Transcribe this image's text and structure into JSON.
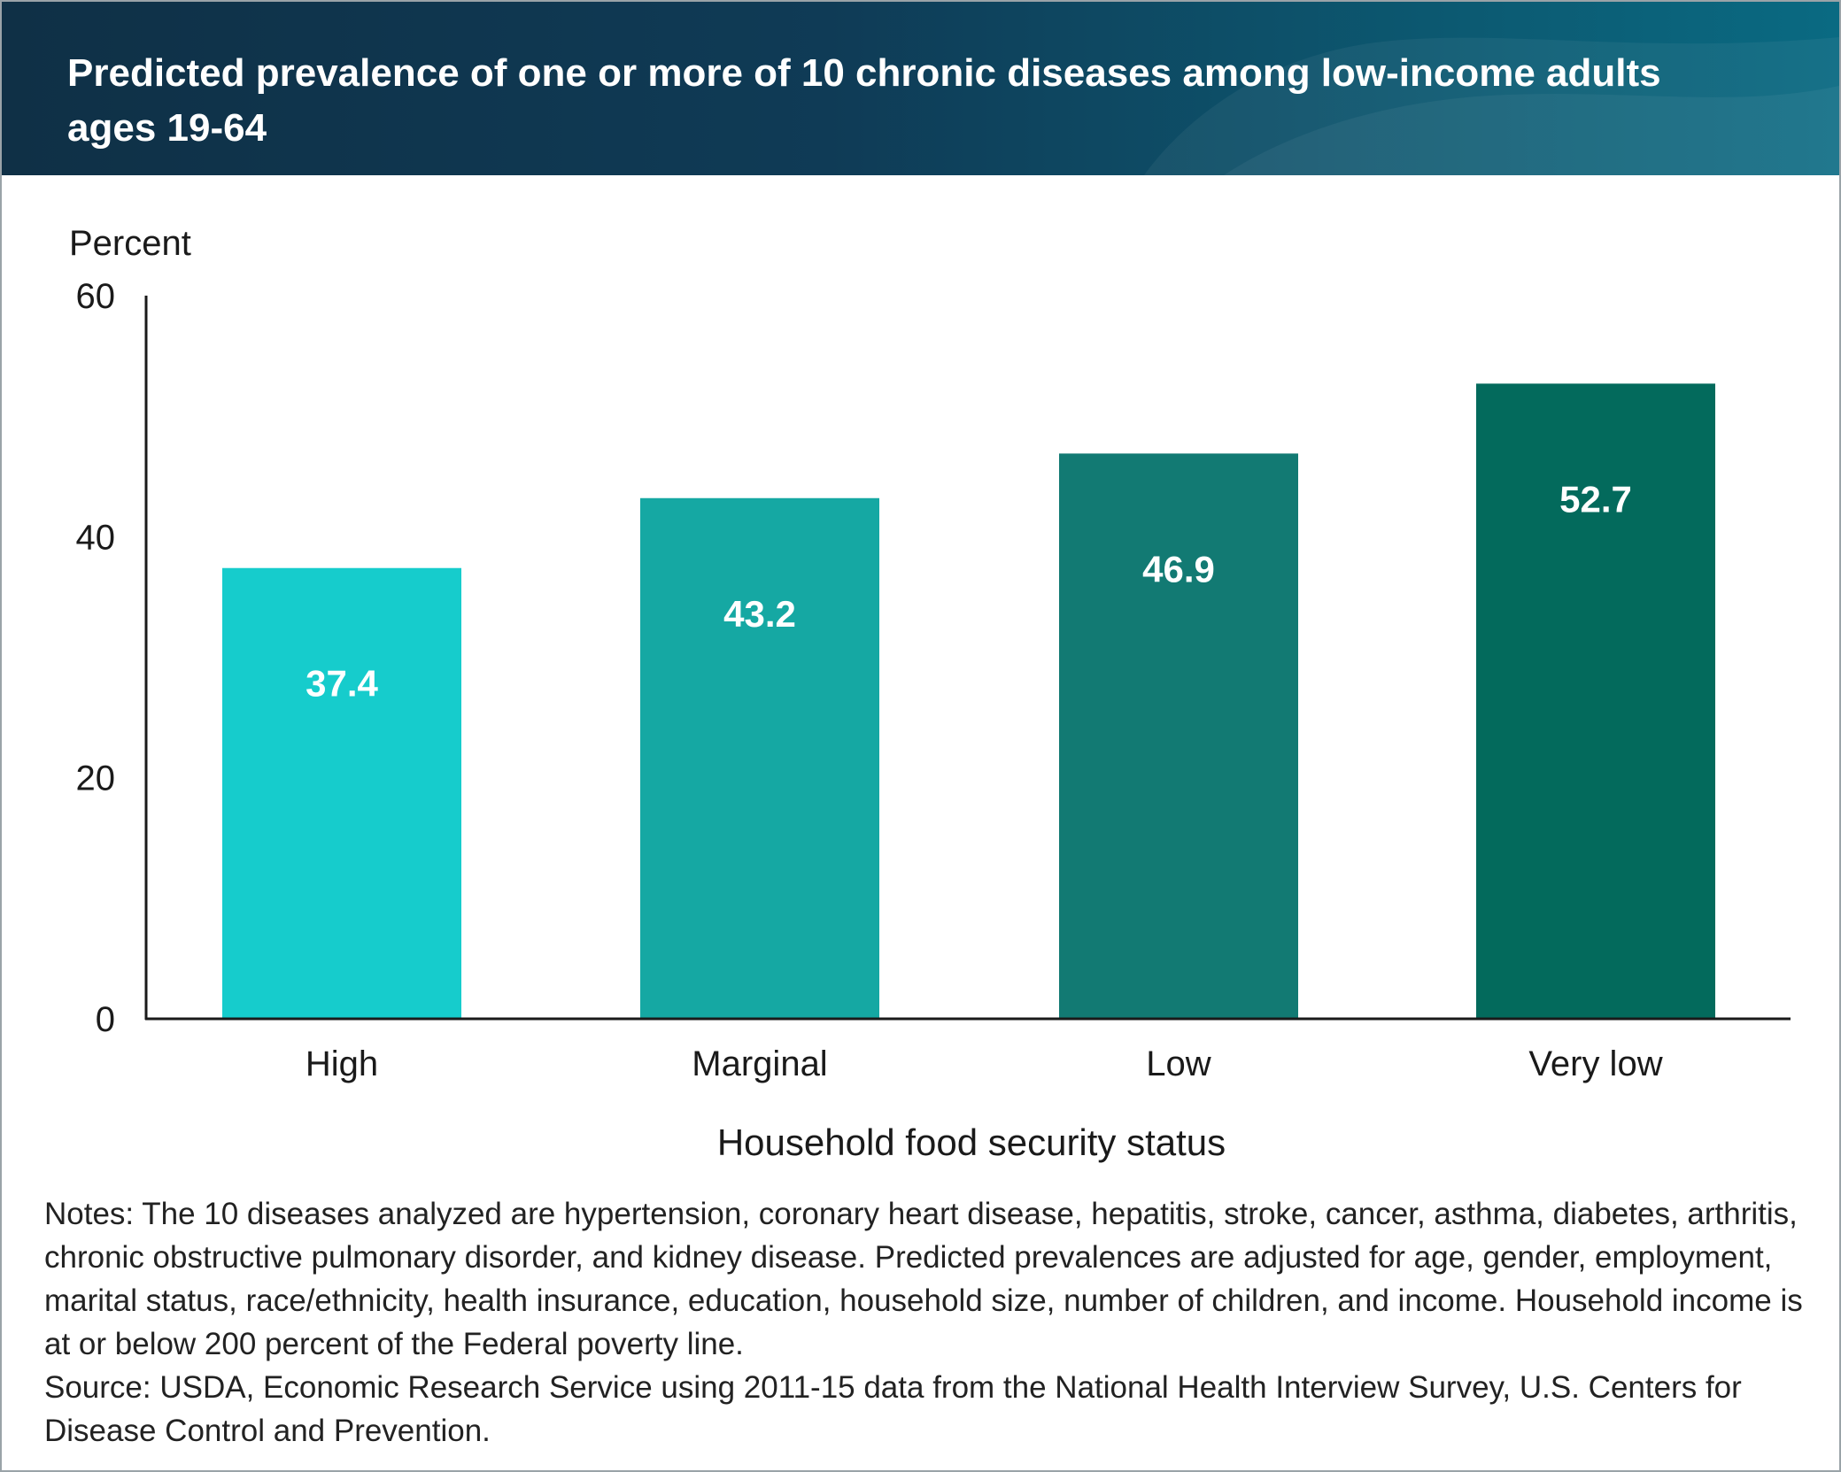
{
  "header": {
    "title": "Predicted prevalence of one or more of 10 chronic diseases among low-income adults ages 19-64"
  },
  "chart_data": {
    "type": "bar",
    "title": "Predicted prevalence of one or more of 10 chronic diseases among low-income adults ages 19-64",
    "ylabel": "Percent",
    "xlabel": "Household food security status",
    "categories": [
      "High",
      "Marginal",
      "Low",
      "Very low"
    ],
    "values": [
      37.4,
      43.2,
      46.9,
      52.7
    ],
    "data_labels": [
      "37.4",
      "43.2",
      "46.9",
      "52.7"
    ],
    "bar_colors": [
      "#16cccc",
      "#15a8a3",
      "#127a73",
      "#036a5c"
    ],
    "ylim": [
      0,
      60
    ],
    "yticks": [
      0,
      20,
      40,
      60
    ],
    "ytick_labels": [
      "0",
      "20",
      "40",
      "60"
    ],
    "grid": false,
    "legend": "none"
  },
  "notes": {
    "text": "Notes: The 10 diseases analyzed are hypertension, coronary heart disease, hepatitis, stroke, cancer, asthma, diabetes, arthritis, chronic obstructive pulmonary disorder, and kidney disease. Predicted prevalences are adjusted for age, gender, employment, marital status, race/ethnicity, health insurance, education, household size, number of children, and income. Household income is at or below 200 percent of the Federal poverty line.",
    "source": "Source: USDA, Economic Research Service using 2011-15 data from the National Health Interview Survey, U.S. Centers for Disease Control and Prevention."
  },
  "colors": {
    "header_bg": "#0f3b56",
    "axis": "#1a1a1a",
    "label_inside": "#ffffff"
  }
}
